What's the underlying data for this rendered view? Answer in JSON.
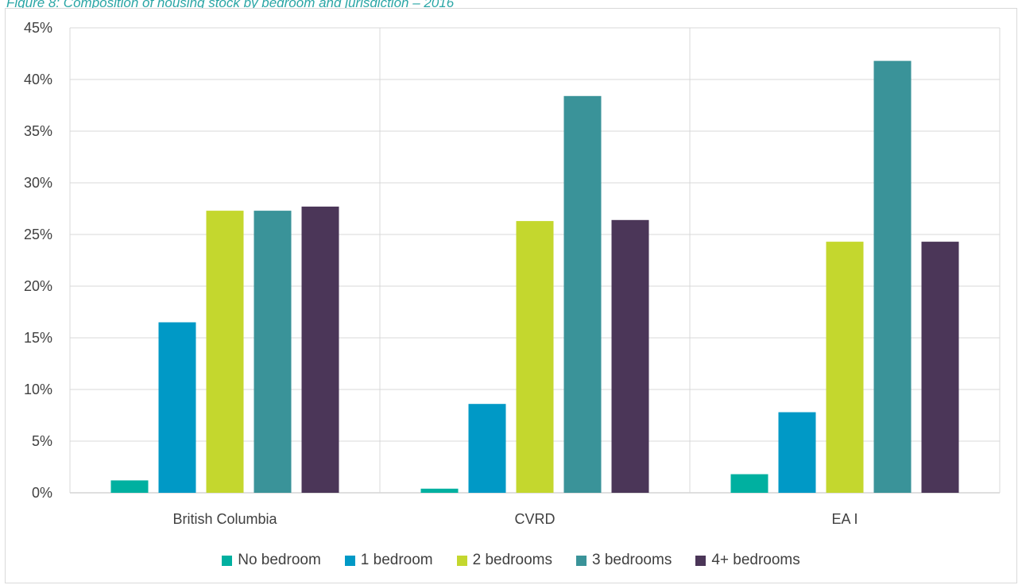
{
  "caption": "Figure 8: Composition of housing stock by bedroom and jurisdiction – 2016",
  "chart_data": {
    "type": "bar",
    "categories": [
      "British Columbia",
      "CVRD",
      "EA I"
    ],
    "series": [
      {
        "name": "No bedroom",
        "color": "#00b0a0",
        "values": [
          1.2,
          0.4,
          1.8
        ]
      },
      {
        "name": "1 bedroom",
        "color": "#0099c6",
        "values": [
          16.5,
          8.6,
          7.8
        ]
      },
      {
        "name": "2 bedrooms",
        "color": "#c4d72e",
        "values": [
          27.3,
          26.3,
          24.3
        ]
      },
      {
        "name": "3 bedrooms",
        "color": "#3a9399",
        "values": [
          27.3,
          38.4,
          41.8
        ]
      },
      {
        "name": "4+ bedrooms",
        "color": "#4b3658",
        "values": [
          27.7,
          26.4,
          24.3
        ]
      }
    ],
    "yticks": [
      "0%",
      "5%",
      "10%",
      "15%",
      "20%",
      "25%",
      "30%",
      "35%",
      "40%",
      "45%"
    ],
    "ylim": [
      0,
      45
    ],
    "grid": true,
    "legend_position": "bottom"
  }
}
